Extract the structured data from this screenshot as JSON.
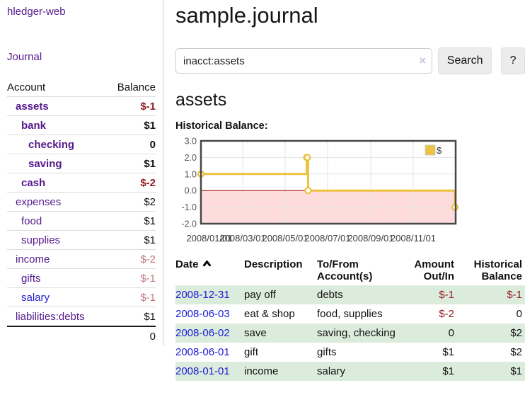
{
  "app": {
    "brand": "hledger-web",
    "nav_journal": "Journal"
  },
  "sidebar": {
    "header": {
      "account": "Account",
      "balance": "Balance"
    },
    "accounts": [
      {
        "name": "assets",
        "balance": "$-1"
      },
      {
        "name": "bank",
        "balance": "$1"
      },
      {
        "name": "checking",
        "balance": "0"
      },
      {
        "name": "saving",
        "balance": "$1"
      },
      {
        "name": "cash",
        "balance": "$-2"
      },
      {
        "name": "expenses",
        "balance": "$2"
      },
      {
        "name": "food",
        "balance": "$1"
      },
      {
        "name": "supplies",
        "balance": "$1"
      },
      {
        "name": "income",
        "balance": "$-2"
      },
      {
        "name": "gifts",
        "balance": "$-1"
      },
      {
        "name": "salary",
        "balance": "$-1"
      },
      {
        "name": "liabilities:debts",
        "balance": "$1"
      }
    ],
    "total": "0"
  },
  "main": {
    "title": "sample.journal",
    "search": {
      "value": "inacct:assets",
      "clear_icon": "×",
      "search_button": "Search",
      "help_button": "?"
    },
    "account_heading": "assets",
    "chart_label": "Historical Balance:",
    "register": {
      "headers": {
        "date": "Date",
        "description": "Description",
        "accounts": "To/From Account(s)",
        "amount": "Amount Out/In",
        "historical": "Historical Balance"
      },
      "rows": [
        {
          "date": "2008-12-31",
          "description": "pay off",
          "accounts": "debts",
          "amount": "$-1",
          "historical": "$-1"
        },
        {
          "date": "2008-06-03",
          "description": "eat & shop",
          "accounts": "food, supplies",
          "amount": "$-2",
          "historical": "0"
        },
        {
          "date": "2008-06-02",
          "description": "save",
          "accounts": "saving, checking",
          "amount": "0",
          "historical": "$2"
        },
        {
          "date": "2008-06-01",
          "description": "gift",
          "accounts": "gifts",
          "amount": "$1",
          "historical": "$2"
        },
        {
          "date": "2008-01-01",
          "description": "income",
          "accounts": "salary",
          "amount": "$1",
          "historical": "$1"
        }
      ]
    }
  },
  "chart_data": {
    "type": "line",
    "title": "Historical Balance",
    "x_range": [
      "2008-01-01",
      "2009-01-01"
    ],
    "ylim": [
      -2,
      3
    ],
    "yticks": [
      3,
      2,
      1,
      0,
      -1,
      -2
    ],
    "xticks": [
      {
        "date": "2008-01-01",
        "label": "2008/01/01"
      },
      {
        "date": "2008-03-01",
        "label": "2008/03/01"
      },
      {
        "date": "2008-05-01",
        "label": "2008/05/01"
      },
      {
        "date": "2008-07-01",
        "label": "2008/07/01"
      },
      {
        "date": "2008-09-01",
        "label": "2008/09/01"
      },
      {
        "date": "2008-11-01",
        "label": "2008/11/01"
      }
    ],
    "series": [
      {
        "name": "$",
        "style": "step",
        "points": [
          {
            "x": "2008-01-01",
            "y": 1
          },
          {
            "x": "2008-06-01",
            "y": 2
          },
          {
            "x": "2008-06-02",
            "y": 2
          },
          {
            "x": "2008-06-03",
            "y": 0
          },
          {
            "x": "2008-12-31",
            "y": -1
          }
        ]
      }
    ],
    "legend_position": "top-right",
    "grid": true,
    "colors": {
      "line": "#edc240",
      "negative_region": "#ffdcdc",
      "zero_line": "#990000",
      "border": "#474747",
      "grid": "#e3e3e3"
    }
  }
}
